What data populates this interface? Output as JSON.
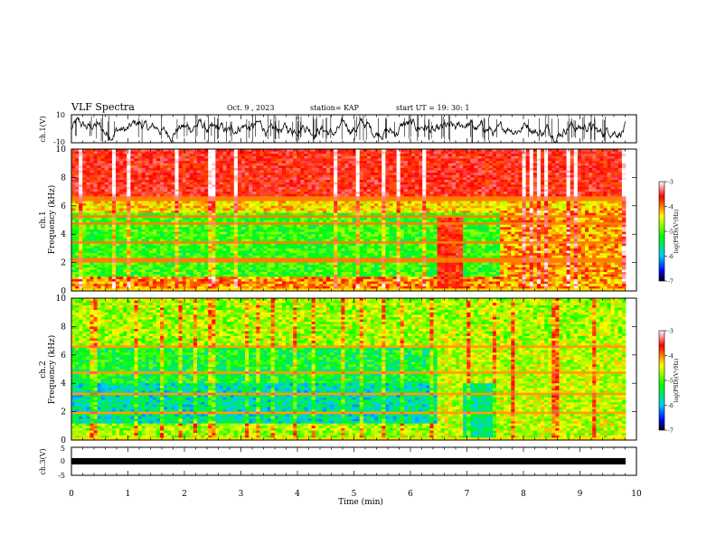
{
  "header": {
    "title": "VLF Spectra",
    "date": "Oct. 9 , 2023",
    "station": "station= KAP",
    "start": "start  UT  =   19: 30: 1"
  },
  "chart_data": [
    {
      "type": "line",
      "panel": "ch1-waveform",
      "ylabel": "ch.1(V)",
      "ylim": [
        -10,
        10
      ],
      "yticks": [
        "10",
        "-10"
      ],
      "xlim": [
        0,
        10
      ],
      "note_x_extent_min": 9.8
    },
    {
      "type": "heatmap",
      "panel": "ch1-spectrogram",
      "ylabel": "ch.1\nFrequency (kHz)",
      "ylabel_line1": "ch.1",
      "ylabel_line2": "Frequency (kHz)",
      "ylim": [
        0,
        10
      ],
      "yticks": [
        "0",
        "2",
        "4",
        "6",
        "8",
        "10"
      ],
      "xlim": [
        0,
        10
      ],
      "colorbar": {
        "label": "log(PSD)(V²/Hz)",
        "min": -7,
        "max": -3,
        "ticks": [
          "-3",
          "-4",
          "-5",
          "-6",
          "-7"
        ]
      }
    },
    {
      "type": "heatmap",
      "panel": "ch2-spectrogram",
      "ylabel_line1": "ch.2",
      "ylabel_line2": "Frequency (kHz)",
      "ylim": [
        0,
        10
      ],
      "yticks": [
        "0",
        "2",
        "4",
        "6",
        "8",
        "10"
      ],
      "xlim": [
        0,
        10
      ],
      "colorbar": {
        "label": "log(PSD)(V²/Hz)",
        "min": -7,
        "max": -3,
        "ticks": [
          "-3",
          "-4",
          "-5",
          "-6",
          "-7"
        ]
      }
    },
    {
      "type": "line",
      "panel": "ch3-waveform",
      "ylabel": "ch.3(V)",
      "ylim": [
        -5,
        5
      ],
      "yticks": [
        "5",
        "0",
        "-5"
      ],
      "xlim": [
        0,
        10
      ],
      "xlabel": "Time (min)",
      "xticks": [
        "0",
        "1",
        "2",
        "3",
        "4",
        "5",
        "6",
        "7",
        "8",
        "9",
        "10"
      ]
    }
  ]
}
